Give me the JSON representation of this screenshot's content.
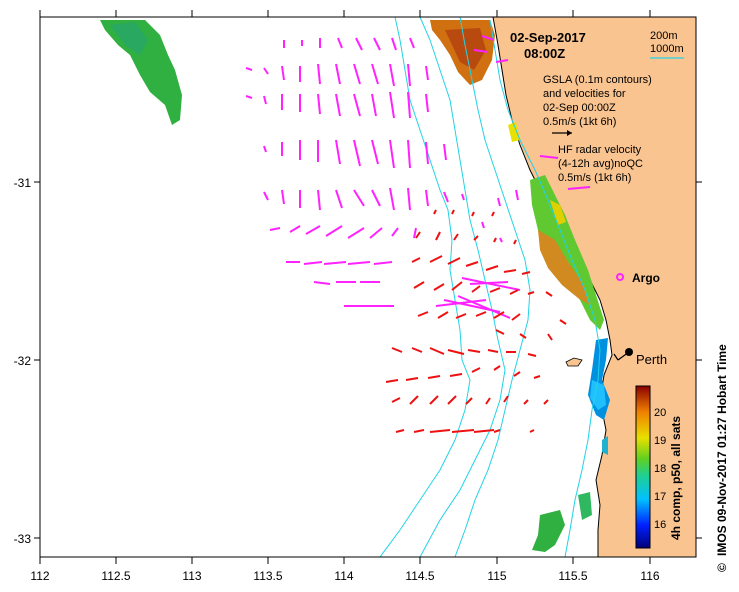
{
  "map": {
    "date": "02-Sep-2017",
    "time": "08:00Z",
    "contour_legend": [
      "200m",
      "1000m"
    ],
    "gsla_legend": [
      "GSLA (0.1m contours)",
      "and velocities for",
      "02-Sep 00:00Z",
      "0.5m/s (1kt 6h)"
    ],
    "hf_legend": [
      "HF radar velocity",
      "(4-12h avg)noQC",
      "0.5m/s (1kt 6h)"
    ],
    "argo_label": "Argo",
    "city_label": "Perth",
    "copyright_symbol": "©",
    "footer": "IMOS 09-Nov-2017 01:27 Hobart Time",
    "colorbar_caption": "4h comp, p50, all sats",
    "x_ticks": [
      "112",
      "112.5",
      "113",
      "113.5",
      "114",
      "114.5",
      "115",
      "115.5",
      "116"
    ],
    "y_ticks": [
      "-31",
      "-32",
      "-33"
    ],
    "colorbar_ticks": [
      "20",
      "19",
      "18",
      "17",
      "16"
    ],
    "colors": {
      "land": "#f9c490",
      "contour": "#22d3e6",
      "hf_vector": "#ff22ff",
      "gsla_vector": "#ee1111",
      "frame": "#000000"
    }
  }
}
